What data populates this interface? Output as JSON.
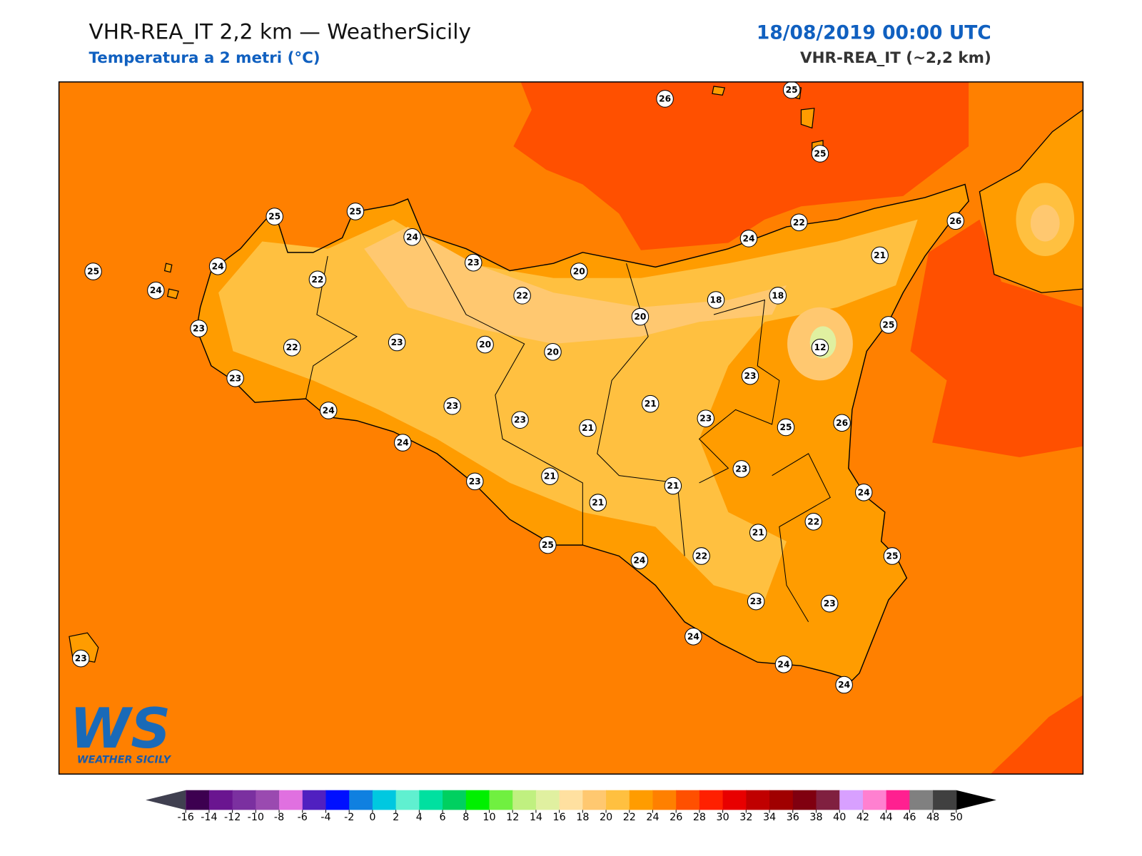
{
  "header": {
    "title": "VHR-REA_IT 2,2 km — WeatherSicily",
    "subtitle": "Temperatura a 2 metri (°C)",
    "datetime": "18/08/2019 00:00 UTC",
    "model": "VHR-REA_IT (~2,2 km)"
  },
  "logo": {
    "mark": "WS",
    "name": "WEATHER SICILY"
  },
  "stations": [
    25,
    25,
    24,
    23,
    24,
    22,
    25,
    24,
    23,
    22,
    23,
    23,
    20,
    22,
    20,
    20,
    20,
    18,
    18,
    24,
    22,
    21,
    26,
    25,
    12,
    26,
    25,
    25,
    24,
    23,
    23,
    21,
    21,
    23,
    23,
    25,
    26,
    24,
    23,
    21,
    21,
    21,
    23,
    24,
    22,
    21,
    22,
    25,
    25,
    24,
    23,
    23,
    24,
    24,
    24,
    23
  ],
  "colorbar": {
    "ticks": [
      -16,
      -14,
      -12,
      -10,
      -8,
      -6,
      -4,
      -2,
      0,
      2,
      4,
      6,
      8,
      10,
      12,
      14,
      16,
      18,
      20,
      22,
      24,
      26,
      28,
      30,
      32,
      34,
      36,
      38,
      40,
      42,
      44,
      46,
      48,
      50
    ],
    "colors": [
      "#3d0050",
      "#6a1590",
      "#7b30a0",
      "#9a4ab0",
      "#e070e0",
      "#5020c0",
      "#0010ff",
      "#1080e0",
      "#00c8e0",
      "#60f0d0",
      "#00e0a0",
      "#00d060",
      "#00f000",
      "#70f040",
      "#c0f080",
      "#e0f0a0",
      "#ffe0a0",
      "#ffc870",
      "#ffc040",
      "#ff9c00",
      "#ff8000",
      "#ff5000",
      "#ff2000",
      "#e80000",
      "#c00000",
      "#a00000",
      "#800010",
      "#802040",
      "#d8a0ff",
      "#ff80d0",
      "#ff2090",
      "#808080",
      "#404040"
    ],
    "under_color": "#404050",
    "over_color": "#000000"
  }
}
